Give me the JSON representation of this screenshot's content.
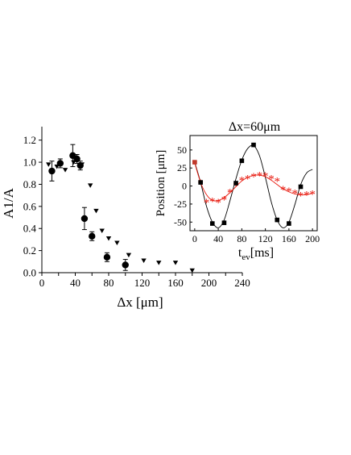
{
  "chart_data": [
    {
      "type": "scatter",
      "title": "",
      "xlabel": "Δx [μm]",
      "ylabel": "A1/A",
      "xlim": [
        0,
        240
      ],
      "ylim": [
        0.0,
        1.3
      ],
      "xticks": [
        "0",
        "20",
        "40",
        "60",
        "80",
        "100",
        "120",
        "140",
        "160",
        "180",
        "200",
        "220",
        "240"
      ],
      "yticks": [
        "0.0",
        "0.2",
        "0.4",
        "0.6",
        "0.8",
        "1.0",
        "1.2"
      ],
      "grid": false,
      "series": [
        {
          "marker": "circle",
          "color": "#000000",
          "points": [
            {
              "x": 12,
              "y": 0.92,
              "err": 0.09
            },
            {
              "x": 22,
              "y": 0.99,
              "err": 0.04
            },
            {
              "x": 37,
              "y": 1.06,
              "err": 0.1
            },
            {
              "x": 42,
              "y": 1.03,
              "err": 0.04
            },
            {
              "x": 46,
              "y": 0.97,
              "err": 0.04
            },
            {
              "x": 51,
              "y": 0.49,
              "err": 0.1
            },
            {
              "x": 60,
              "y": 0.33,
              "err": 0.04
            },
            {
              "x": 78,
              "y": 0.14,
              "err": 0.04
            },
            {
              "x": 100,
              "y": 0.07,
              "err": 0.05
            }
          ]
        },
        {
          "marker": "triangle-down",
          "color": "#000000",
          "points": [
            {
              "x": 8,
              "y": 0.98
            },
            {
              "x": 18,
              "y": 0.96
            },
            {
              "x": 28,
              "y": 0.93
            },
            {
              "x": 38,
              "y": 1.0
            },
            {
              "x": 48,
              "y": 0.98
            },
            {
              "x": 58,
              "y": 0.79
            },
            {
              "x": 65,
              "y": 0.56
            },
            {
              "x": 72,
              "y": 0.38
            },
            {
              "x": 80,
              "y": 0.31
            },
            {
              "x": 90,
              "y": 0.27
            },
            {
              "x": 104,
              "y": 0.16
            },
            {
              "x": 122,
              "y": 0.11
            },
            {
              "x": 140,
              "y": 0.09
            },
            {
              "x": 160,
              "y": 0.09
            },
            {
              "x": 180,
              "y": 0.02
            }
          ]
        }
      ]
    },
    {
      "type": "line",
      "title": "Δx=60μm",
      "xlabel": "t_ev[ms]",
      "xlabel_base": "t",
      "xlabel_sub": "ev",
      "xlabel_rest": "[ms]",
      "ylabel": "Position [μm]",
      "xlim": [
        -8,
        208
      ],
      "ylim": [
        -62,
        70
      ],
      "xticks": [
        "0",
        "40",
        "80",
        "120",
        "160",
        "200"
      ],
      "yticks": [
        "-50",
        "-25",
        "0",
        "25",
        "50"
      ],
      "series": [
        {
          "marker": "square",
          "color": "#000000",
          "points": [
            {
              "x": 0,
              "y": 33
            },
            {
              "x": 10,
              "y": 5
            },
            {
              "x": 30,
              "y": -52
            },
            {
              "x": 50,
              "y": -51
            },
            {
              "x": 70,
              "y": 4
            },
            {
              "x": 80,
              "y": 35
            },
            {
              "x": 100,
              "y": 57
            },
            {
              "x": 140,
              "y": -47
            },
            {
              "x": 160,
              "y": -52
            },
            {
              "x": 180,
              "y": -1
            }
          ],
          "fit": {
            "x": [
              0,
              10,
              20,
              30,
              40,
              50,
              60,
              70,
              80,
              90,
              100,
              110,
              120,
              130,
              140,
              150,
              160,
              170,
              180,
              190,
              200
            ],
            "y": [
              33,
              5,
              -28,
              -50,
              -58,
              -47,
              -20,
              10,
              36,
              52,
              56,
              42,
              12,
              -22,
              -47,
              -58,
              -50,
              -26,
              2,
              18,
              23
            ]
          }
        },
        {
          "marker": "star",
          "color": "#e8190e",
          "points": [
            {
              "x": 0,
              "y": 32
            },
            {
              "x": 10,
              "y": 5
            },
            {
              "x": 20,
              "y": -22
            },
            {
              "x": 30,
              "y": -20
            },
            {
              "x": 40,
              "y": -22
            },
            {
              "x": 50,
              "y": -18
            },
            {
              "x": 60,
              "y": -8
            },
            {
              "x": 70,
              "y": 2
            },
            {
              "x": 80,
              "y": 9
            },
            {
              "x": 90,
              "y": 11
            },
            {
              "x": 100,
              "y": 14
            },
            {
              "x": 110,
              "y": 16
            },
            {
              "x": 120,
              "y": 15
            },
            {
              "x": 130,
              "y": 11
            },
            {
              "x": 140,
              "y": 8
            },
            {
              "x": 150,
              "y": -4
            },
            {
              "x": 160,
              "y": -6
            },
            {
              "x": 170,
              "y": -9
            },
            {
              "x": 180,
              "y": -12
            },
            {
              "x": 190,
              "y": -11
            },
            {
              "x": 200,
              "y": -10
            }
          ],
          "fit": {
            "x": [
              0,
              10,
              20,
              30,
              40,
              50,
              60,
              70,
              80,
              90,
              100,
              110,
              120,
              130,
              140,
              150,
              160,
              170,
              180,
              190,
              200
            ],
            "y": [
              32,
              5,
              -12,
              -20,
              -20,
              -16,
              -9,
              -1,
              7,
              12,
              15,
              15,
              13,
              8,
              2,
              -4,
              -8,
              -11,
              -12,
              -12,
              -10
            ]
          }
        }
      ]
    }
  ]
}
